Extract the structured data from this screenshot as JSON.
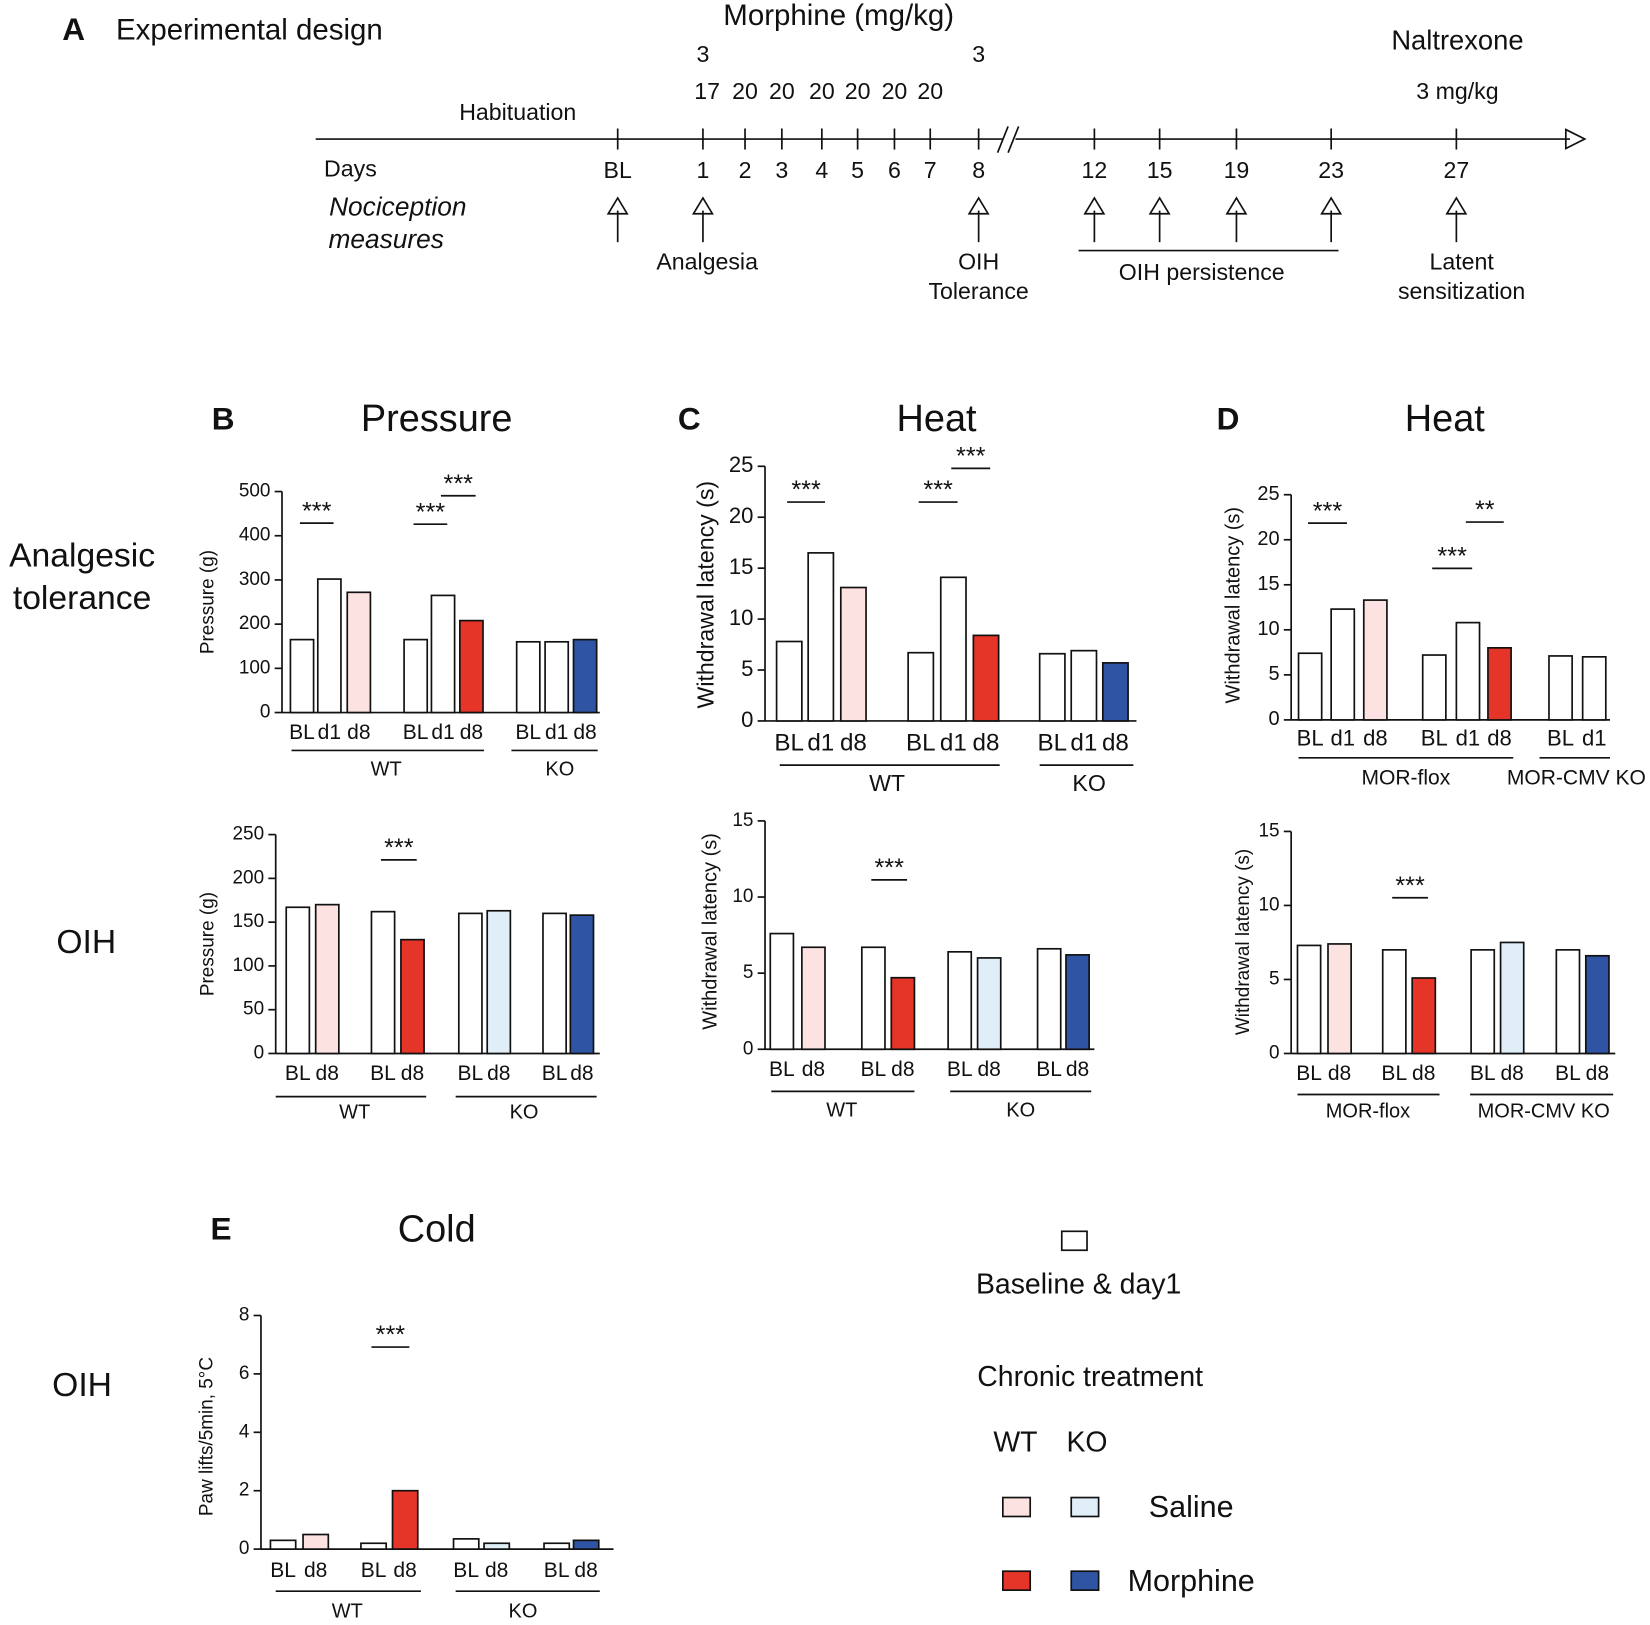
{
  "design": {
    "panel": "A",
    "title": "Experimental design",
    "morphine_label": "Morphine (mg/kg)",
    "habituation": "Habituation",
    "days_label": "Days",
    "measures_label": [
      "Nociception",
      "measures"
    ],
    "naltrexone": "Naltrexone",
    "naltrexone_dose": "3 mg/kg",
    "ticks": [
      {
        "day": "BL"
      },
      {
        "day": "1",
        "dose": "17",
        "dose_extra": "3"
      },
      {
        "day": "2",
        "dose": "20"
      },
      {
        "day": "3",
        "dose": "20"
      },
      {
        "day": "4",
        "dose": "20"
      },
      {
        "day": "5",
        "dose": "20"
      },
      {
        "day": "6",
        "dose": "20"
      },
      {
        "day": "7",
        "dose": "20"
      },
      {
        "day": "8",
        "dose_extra": "3"
      },
      {
        "day": "12"
      },
      {
        "day": "15"
      },
      {
        "day": "19"
      },
      {
        "day": "23"
      },
      {
        "day": "27"
      }
    ],
    "measures": [
      {
        "lines": [
          "Analgesia"
        ]
      },
      {
        "lines": [
          "OIH",
          "Tolerance"
        ]
      },
      {
        "lines": [
          "OIH persistence"
        ]
      },
      {
        "lines": [
          "Latent",
          "sensitization"
        ]
      }
    ]
  },
  "row_labels": [
    {
      "lines": [
        "Analgesic",
        "tolerance"
      ]
    },
    {
      "lines": [
        "OIH"
      ]
    },
    {
      "lines": [
        "OIH"
      ]
    }
  ],
  "chart_data": [
    {
      "type": "bar",
      "panel": "B",
      "title": "Pressure",
      "ylabel": "Pressure (g)",
      "ylim": [
        0,
        500
      ],
      "yticks": [
        0,
        100,
        200,
        300,
        400,
        500
      ],
      "groups": [
        {
          "label": "WT",
          "clusters": [
            {
              "categories": [
                "BL",
                "d1",
                "d8"
              ],
              "values": [
                165,
                302,
                272
              ],
              "colors": [
                "#ffffff",
                "#ffffff",
                "#fde2e2"
              ],
              "annotations": [
                "***"
              ]
            },
            {
              "categories": [
                "BL",
                "d1",
                "d8"
              ],
              "values": [
                165,
                265,
                208
              ],
              "colors": [
                "#ffffff",
                "#ffffff",
                "#e53428"
              ],
              "annotations": [
                "***",
                "***"
              ]
            }
          ]
        },
        {
          "label": "KO",
          "clusters": [
            {
              "categories": [
                "BL",
                "d1",
                "d8"
              ],
              "values": [
                160,
                160,
                165
              ],
              "colors": [
                "#ffffff",
                "#ffffff",
                "#2f54a3"
              ],
              "annotations": []
            }
          ]
        }
      ]
    },
    {
      "type": "bar",
      "panel": "C",
      "title": "Heat",
      "ylabel": "Withdrawal latency (s)",
      "ylim": [
        0,
        25
      ],
      "yticks": [
        0,
        5,
        10,
        15,
        20,
        25
      ],
      "groups": [
        {
          "label": "WT",
          "clusters": [
            {
              "categories": [
                "BL",
                "d1",
                "d8"
              ],
              "values": [
                7.8,
                16.5,
                13.1
              ],
              "colors": [
                "#ffffff",
                "#ffffff",
                "#fde2e2"
              ],
              "annotations": [
                "***"
              ]
            },
            {
              "categories": [
                "BL",
                "d1",
                "d8"
              ],
              "values": [
                6.7,
                14.1,
                8.4
              ],
              "colors": [
                "#ffffff",
                "#ffffff",
                "#e53428"
              ],
              "annotations": [
                "***",
                "***"
              ]
            }
          ]
        },
        {
          "label": "KO",
          "clusters": [
            {
              "categories": [
                "BL",
                "d1",
                "d8"
              ],
              "values": [
                6.6,
                6.9,
                5.7
              ],
              "colors": [
                "#ffffff",
                "#ffffff",
                "#2f54a3"
              ],
              "annotations": []
            }
          ]
        }
      ]
    },
    {
      "type": "bar",
      "panel": "D",
      "title": "Heat",
      "ylabel": "Withdrawal latency (s)",
      "ylim": [
        0,
        25
      ],
      "yticks": [
        0,
        5,
        10,
        15,
        20,
        25
      ],
      "groups": [
        {
          "label": "MOR-flox",
          "clusters": [
            {
              "categories": [
                "BL",
                "d1",
                "d8"
              ],
              "values": [
                7.4,
                12.3,
                13.3
              ],
              "colors": [
                "#ffffff",
                "#ffffff",
                "#fde2e2"
              ],
              "annotations": [
                "***"
              ]
            },
            {
              "categories": [
                "BL",
                "d1",
                "d8"
              ],
              "values": [
                7.2,
                10.8,
                8.0
              ],
              "colors": [
                "#ffffff",
                "#ffffff",
                "#e53428"
              ],
              "annotations": [
                "***",
                "**"
              ]
            }
          ]
        },
        {
          "label": "MOR-CMV KO",
          "clusters": [
            {
              "categories": [
                "BL",
                "d1"
              ],
              "values": [
                7.1,
                7.0
              ],
              "colors": [
                "#ffffff",
                "#ffffff"
              ],
              "annotations": []
            }
          ]
        }
      ]
    },
    {
      "type": "bar",
      "ylabel": "Pressure (g)",
      "ylim": [
        0,
        250
      ],
      "yticks": [
        0,
        50,
        100,
        150,
        200,
        250
      ],
      "groups": [
        {
          "label": "WT",
          "clusters": [
            {
              "categories": [
                "BL",
                "d8"
              ],
              "values": [
                167,
                170
              ],
              "colors": [
                "#ffffff",
                "#fde2e2"
              ],
              "annotations": []
            },
            {
              "categories": [
                "BL",
                "d8"
              ],
              "values": [
                162,
                130
              ],
              "colors": [
                "#ffffff",
                "#e53428"
              ],
              "annotations": [
                "***"
              ]
            }
          ]
        },
        {
          "label": "KO",
          "clusters": [
            {
              "categories": [
                "BL",
                "d8"
              ],
              "values": [
                160,
                163
              ],
              "colors": [
                "#ffffff",
                "#e0eef8"
              ],
              "annotations": []
            },
            {
              "categories": [
                "BL",
                "d8"
              ],
              "values": [
                160,
                158
              ],
              "colors": [
                "#ffffff",
                "#2f54a3"
              ],
              "annotations": []
            }
          ]
        }
      ]
    },
    {
      "type": "bar",
      "ylabel": "Withdrawal latency (s)",
      "ylim": [
        0,
        15
      ],
      "yticks": [
        0,
        5,
        10,
        15
      ],
      "groups": [
        {
          "label": "WT",
          "clusters": [
            {
              "categories": [
                "BL",
                "d8"
              ],
              "values": [
                7.6,
                6.7
              ],
              "colors": [
                "#ffffff",
                "#fde2e2"
              ],
              "annotations": []
            },
            {
              "categories": [
                "BL",
                "d8"
              ],
              "values": [
                6.7,
                4.7
              ],
              "colors": [
                "#ffffff",
                "#e53428"
              ],
              "annotations": [
                "***"
              ]
            }
          ]
        },
        {
          "label": "KO",
          "clusters": [
            {
              "categories": [
                "BL",
                "d8"
              ],
              "values": [
                6.4,
                6.0
              ],
              "colors": [
                "#ffffff",
                "#e0eef8"
              ],
              "annotations": []
            },
            {
              "categories": [
                "BL",
                "d8"
              ],
              "values": [
                6.6,
                6.2
              ],
              "colors": [
                "#ffffff",
                "#2f54a3"
              ],
              "annotations": []
            }
          ]
        }
      ]
    },
    {
      "type": "bar",
      "ylabel": "Withdrawal latency (s)",
      "ylim": [
        0,
        15
      ],
      "yticks": [
        0,
        5,
        10,
        15
      ],
      "groups": [
        {
          "label": "MOR-flox",
          "clusters": [
            {
              "categories": [
                "BL",
                "d8"
              ],
              "values": [
                7.3,
                7.4
              ],
              "colors": [
                "#ffffff",
                "#fde2e2"
              ],
              "annotations": []
            },
            {
              "categories": [
                "BL",
                "d8"
              ],
              "values": [
                7.0,
                5.1
              ],
              "colors": [
                "#ffffff",
                "#e53428"
              ],
              "annotations": [
                "***"
              ]
            }
          ]
        },
        {
          "label": "MOR-CMV KO",
          "clusters": [
            {
              "categories": [
                "BL",
                "d8"
              ],
              "values": [
                7.0,
                7.5
              ],
              "colors": [
                "#ffffff",
                "#e0eef8"
              ],
              "annotations": []
            },
            {
              "categories": [
                "BL",
                "d8"
              ],
              "values": [
                7.0,
                6.6
              ],
              "colors": [
                "#ffffff",
                "#2f54a3"
              ],
              "annotations": []
            }
          ]
        }
      ]
    },
    {
      "type": "bar",
      "panel": "E",
      "title": "Cold",
      "ylabel": "Paw lifts/5min, 5°C",
      "ylim": [
        0,
        8
      ],
      "yticks": [
        0,
        2,
        4,
        6,
        8
      ],
      "groups": [
        {
          "label": "WT",
          "clusters": [
            {
              "categories": [
                "BL",
                "d8"
              ],
              "values": [
                0.3,
                0.5
              ],
              "colors": [
                "#ffffff",
                "#fde2e2"
              ],
              "annotations": []
            },
            {
              "categories": [
                "BL",
                "d8"
              ],
              "values": [
                0.2,
                2.0
              ],
              "colors": [
                "#ffffff",
                "#e53428"
              ],
              "annotations": [
                "***"
              ]
            }
          ]
        },
        {
          "label": "KO",
          "clusters": [
            {
              "categories": [
                "BL",
                "d8"
              ],
              "values": [
                0.35,
                0.2
              ],
              "colors": [
                "#ffffff",
                "#e0eef8"
              ],
              "annotations": []
            },
            {
              "categories": [
                "BL",
                "d8"
              ],
              "values": [
                0.2,
                0.3
              ],
              "colors": [
                "#ffffff",
                "#2f54a3"
              ],
              "annotations": []
            }
          ]
        }
      ]
    }
  ],
  "legend": {
    "baseline": "Baseline & day1",
    "baseline_color": "#ffffff",
    "chronic": "Chronic treatment",
    "columns": [
      "WT",
      "KO"
    ],
    "rows": [
      {
        "label": "Saline",
        "colors": [
          "#fde2e2",
          "#e0eef8"
        ]
      },
      {
        "label": "Morphine",
        "colors": [
          "#e53428",
          "#2f54a3"
        ]
      }
    ]
  }
}
